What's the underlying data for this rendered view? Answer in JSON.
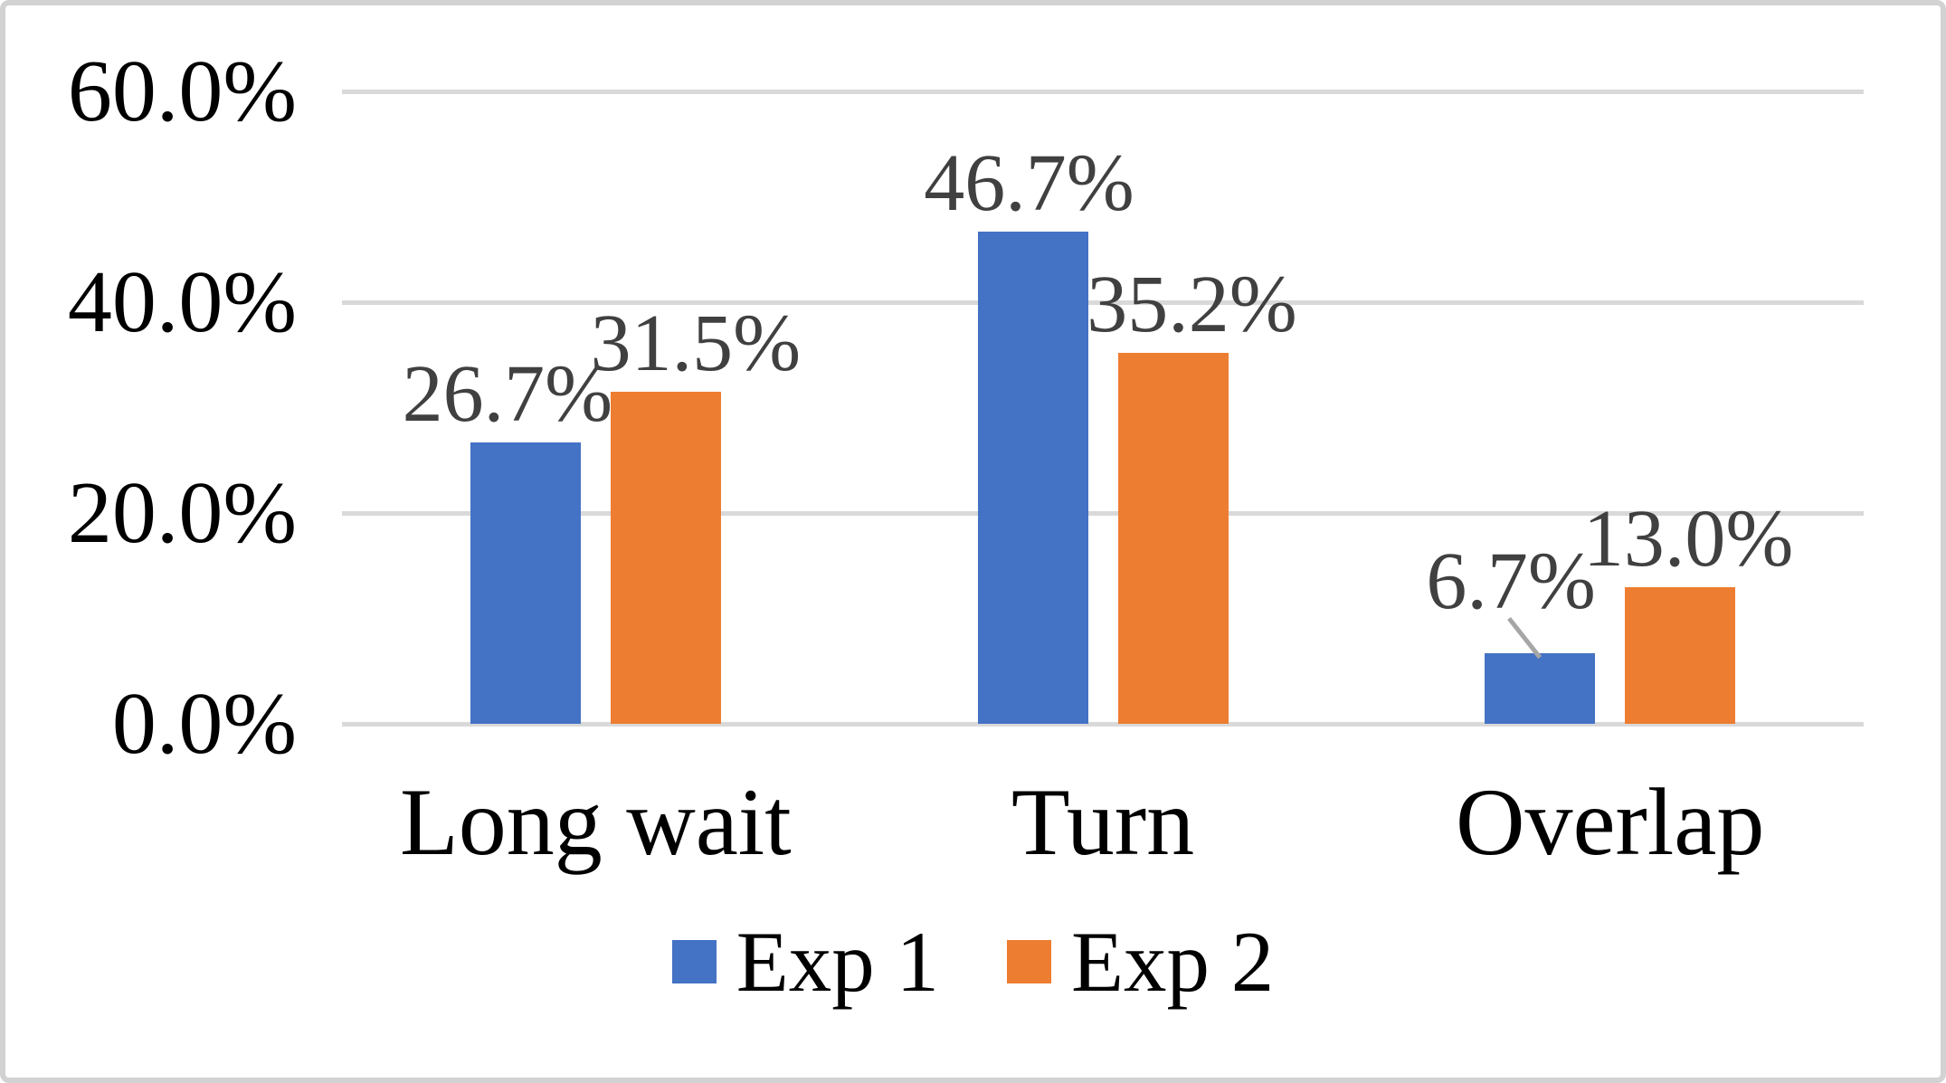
{
  "chart_data": {
    "type": "bar",
    "title": "",
    "categories": [
      "Long wait",
      "Turn",
      "Overlap"
    ],
    "series": [
      {
        "name": "Exp 1",
        "color": "#4472C4",
        "values": [
          26.7,
          46.7,
          6.7
        ],
        "data_labels": [
          "26.7%",
          "46.7%",
          "6.7%"
        ]
      },
      {
        "name": "Exp 2",
        "color": "#ED7D31",
        "values": [
          31.5,
          35.2,
          13.0
        ],
        "data_labels": [
          "31.5%",
          "35.2%",
          "13.0%"
        ]
      }
    ],
    "y_axis": {
      "min": 0,
      "max": 60,
      "ticks": [
        {
          "value": 0,
          "label": "0.0%"
        },
        {
          "value": 20,
          "label": "20.0%"
        },
        {
          "value": 40,
          "label": "40.0%"
        },
        {
          "value": 60,
          "label": "60.0%"
        }
      ]
    },
    "x_axis": {
      "labels": [
        "Long wait",
        "Turn",
        "Overlap"
      ]
    },
    "grid": true,
    "legend": {
      "position": "bottom",
      "items": [
        "Exp 1",
        "Exp 2"
      ]
    },
    "callout": {
      "series_index": 0,
      "category_index": 2,
      "label": "6.7%",
      "style": "gray leader line from label to bar top"
    }
  },
  "colors": {
    "exp1_blue": "#4472C4",
    "exp2_orange": "#ED7D31",
    "gridline": "#D9D9D9",
    "frame_border": "#D2D2D2",
    "data_label_text": "#404040",
    "axis_text": "#000000",
    "legend_text": "#000000",
    "leader_line": "#A6A6A6",
    "background": "#FFFFFF"
  }
}
